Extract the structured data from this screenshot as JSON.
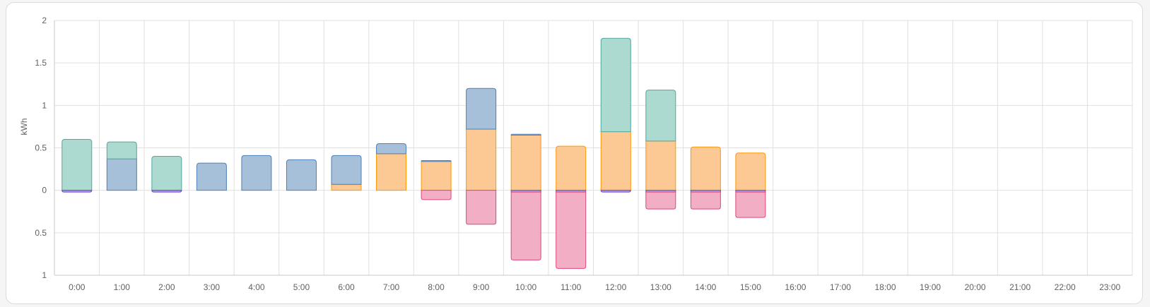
{
  "chart_data": {
    "type": "bar",
    "stacked": true,
    "title": "",
    "xlabel": "",
    "ylabel": "kWh",
    "ylim": [
      -1,
      2
    ],
    "yticks": [
      {
        "value": 2,
        "label": "2"
      },
      {
        "value": 1.5,
        "label": "1.5"
      },
      {
        "value": 1,
        "label": "1"
      },
      {
        "value": 0.5,
        "label": "0.5"
      },
      {
        "value": 0,
        "label": "0"
      },
      {
        "value": -0.5,
        "label": "0.5"
      },
      {
        "value": -1,
        "label": "1"
      }
    ],
    "grid": true,
    "categories": [
      "0:00",
      "1:00",
      "2:00",
      "3:00",
      "4:00",
      "5:00",
      "6:00",
      "7:00",
      "8:00",
      "9:00",
      "10:00",
      "11:00",
      "12:00",
      "13:00",
      "14:00",
      "15:00",
      "16:00",
      "17:00",
      "18:00",
      "19:00",
      "20:00",
      "21:00",
      "22:00",
      "23:00"
    ],
    "series": [
      {
        "color": "#ff9800",
        "fill": "#fcc893",
        "values": [
          0,
          0,
          0,
          0,
          0,
          0,
          0.07,
          0.43,
          0.34,
          0.72,
          0.65,
          0.52,
          0.69,
          0.58,
          0.51,
          0.44,
          null,
          null,
          null,
          null,
          null,
          null,
          null,
          null
        ]
      },
      {
        "color": "#4f7fb6",
        "fill": "#a6c0da",
        "values": [
          0,
          0.37,
          0,
          0.32,
          0.41,
          0.36,
          0.34,
          0.12,
          0.01,
          0.48,
          0.01,
          0,
          0,
          0,
          0,
          0,
          null,
          null,
          null,
          null,
          null,
          null,
          null,
          null
        ]
      },
      {
        "color": "#52a89a",
        "fill": "#acd9d0",
        "values": [
          0.6,
          0.2,
          0.4,
          0,
          0,
          0,
          0,
          0,
          0,
          0,
          0,
          0,
          1.1,
          0.6,
          0,
          0,
          null,
          null,
          null,
          null,
          null,
          null,
          null,
          null
        ]
      },
      {
        "color": "#6a3fd8",
        "fill": "#b6a5ee",
        "values": [
          -0.02,
          0,
          -0.02,
          0,
          0,
          0,
          0,
          0,
          0,
          0,
          -0.02,
          -0.02,
          -0.02,
          -0.02,
          -0.02,
          -0.02,
          null,
          null,
          null,
          null,
          null,
          null,
          null,
          null
        ]
      },
      {
        "color": "#e0457f",
        "fill": "#f2aec4",
        "values": [
          0,
          0,
          0,
          0,
          0,
          0,
          0,
          0,
          -0.11,
          -0.4,
          -0.8,
          -0.9,
          0,
          -0.2,
          -0.2,
          -0.3,
          null,
          null,
          null,
          null,
          null,
          null,
          null,
          null
        ]
      }
    ]
  }
}
